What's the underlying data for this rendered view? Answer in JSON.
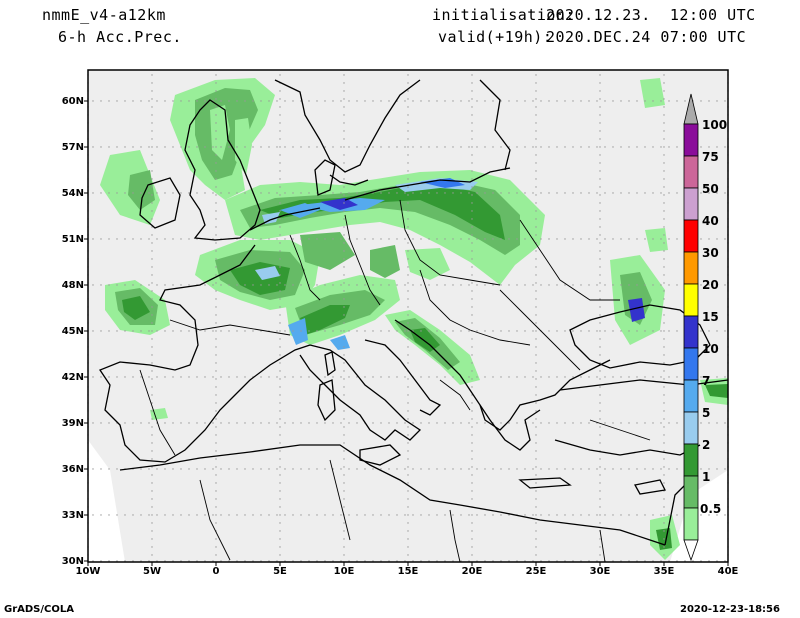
{
  "header": {
    "model": "nmmE_v4-a12km",
    "field": "6-h Acc.Prec.",
    "init_label": "initialisation:",
    "init_value": "2020.12.23.  12:00 UTC",
    "valid_label": "valid(+19h):",
    "valid_value": "2020.DEC.24 07:00 UTC"
  },
  "footer": {
    "left": "GrADS/COLA",
    "right": "2020-12-23-18:56"
  },
  "lat_labels": [
    "60N",
    "57N",
    "54N",
    "51N",
    "48N",
    "45N",
    "42N",
    "39N",
    "36N",
    "33N",
    "30N"
  ],
  "lon_labels": [
    "10W",
    "5W",
    "0",
    "5E",
    "10E",
    "15E",
    "20E",
    "25E",
    "30E",
    "35E",
    "40E"
  ],
  "colorbar": {
    "levels": [
      "100",
      "75",
      "50",
      "40",
      "30",
      "20",
      "15",
      "10",
      "7",
      "5",
      "2",
      "1",
      "0.5"
    ],
    "colors": [
      "#8a0c9a",
      "#cc6699",
      "#cca0d0",
      "#ff0000",
      "#ff9900",
      "#ffff00",
      "#3333cc",
      "#3377ee",
      "#55aaee",
      "#99ccee",
      "#339933",
      "#66bb66",
      "#99ee99"
    ],
    "arrow_color": "#aaaaaa"
  },
  "map_colors": {
    "background": "#eeeeee",
    "light_green": "#99ee99",
    "mid_green": "#66bb66",
    "dark_green": "#339933",
    "light_blue": "#99ccee",
    "blue": "#55aaee",
    "deep_blue": "#3333cc"
  }
}
